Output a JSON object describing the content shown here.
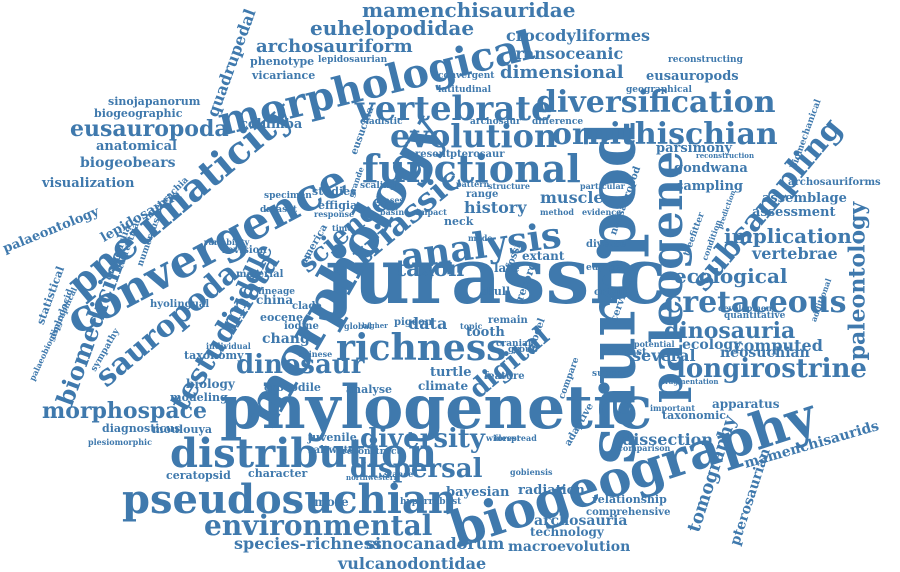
{
  "colors": {
    "primary": "#3f79ad",
    "background": "#ffffff"
  },
  "words": [
    "jurassic",
    "phylogenetic",
    "sauropod",
    "biogeography",
    "morphology",
    "paleogene",
    "convergence",
    "pneumaticity",
    "pseudosuchian",
    "distribution",
    "morphological",
    "functional",
    "vertebrate",
    "diversification",
    "evolution",
    "analysis",
    "triassic",
    "richness",
    "environmental",
    "ornithischian",
    "subsampling",
    "cretaceous",
    "sauropoda",
    "testudinata",
    "dinosaur",
    "digital",
    "diversity",
    "dispersal",
    "longirostrine",
    "dinosauria",
    "paleontology",
    "eusauropoda",
    "morphospace",
    "biomedicine",
    "science",
    "middle",
    "taxon",
    "ecological",
    "implication",
    "tomography",
    "mamenchisauridae",
    "euhelopodidae",
    "archosauriform",
    "crocodyliformes",
    "transoceanic",
    "dimensional",
    "eusauropods",
    "quadrupedal",
    "history",
    "muscle",
    "vertebrae",
    "computed",
    "ecology",
    "neosuchian",
    "several",
    "species-richness",
    "sinocanadorum",
    "vulcanodontidae",
    "macroevolution",
    "mamenchisaurids",
    "archosauria",
    "technology",
    "pterosaurian",
    "dissection",
    "gondwana",
    "parsimony",
    "sampling",
    "assessment",
    "assemblage",
    "palaeontology",
    "biogeobears",
    "anatomical",
    "visualization",
    "columba",
    "biogeographic",
    "sinojapanorum",
    "lepidosauria",
    "statistical",
    "biology",
    "taxonomy",
    "modeling",
    "diagnosticus",
    "moulouya",
    "ceratopsid",
    "character",
    "bayesian",
    "radiation",
    "juvenile",
    "crocodile",
    "analyse",
    "climate",
    "turtle",
    "tooth",
    "data",
    "change",
    "china",
    "eocene",
    "extant",
    "late",
    "skull",
    "record",
    "neck",
    "studies",
    "effigia",
    "america",
    "material",
    "iodine",
    "relationship",
    "comprehensive",
    "saltwater",
    "more",
    "apparatus",
    "taxonomic",
    "fossil",
    "neosauropod",
    "cervical",
    "clade",
    "lineage",
    "biomechanical",
    "archosauriforms",
    "reconstructing",
    "geographical",
    "phenotype",
    "lepidosaurian",
    "vicariance",
    "convergent",
    "latitudinal",
    "archosaur",
    "cladistic",
    "eusuchia",
    "present",
    "pterosaur",
    "difference",
    "dataset",
    "specimen",
    "scaling",
    "response",
    "pattern",
    "structure",
    "method",
    "biases",
    "basin",
    "impact",
    "time",
    "grande",
    "hyolingual",
    "crocodylia",
    "terrestrial",
    "numerous",
    "antebrachia",
    "sympathy",
    "diplodocid",
    "plesiomorphic",
    "palaeobiogeographical",
    "revision",
    "variability",
    "individual",
    "chinese",
    "global",
    "contrast",
    "potential",
    "origin",
    "europe",
    "diverse",
    "quantitative",
    "development",
    "additional",
    "important",
    "comparison",
    "treefitter",
    "condition",
    "widespread",
    "reconstruct",
    "northwestern",
    "hyperrobust",
    "gobiensis",
    "adaptive",
    "compare",
    "feature",
    "support",
    "stance",
    "group",
    "cranial",
    "remain",
    "pigeon",
    "topic",
    "higher",
    "model",
    "mode",
    "forest",
    "range",
    "particular",
    "evidence",
    "reconstruction",
    "prediction",
    "fragmentation"
  ]
}
